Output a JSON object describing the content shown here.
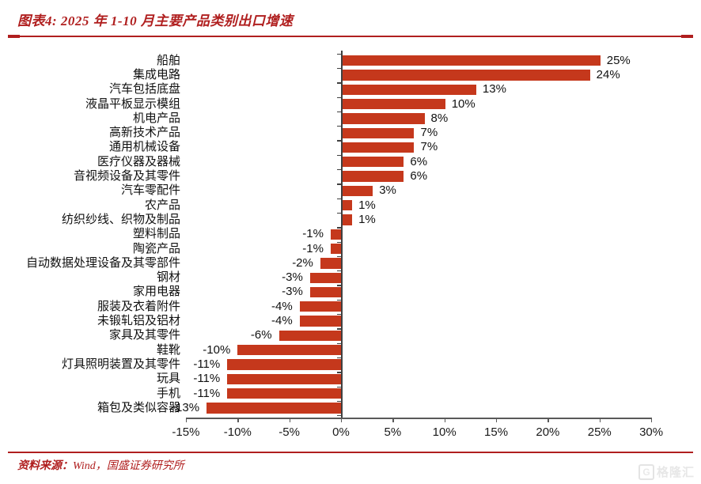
{
  "header": {
    "title": "图表4: 2025 年 1-10 月主要产品类别出口增速"
  },
  "chart_data": {
    "type": "bar",
    "orientation": "horizontal",
    "title": "2025 年 1-10 月主要产品类别出口增速",
    "categories": [
      "船舶",
      "集成电路",
      "汽车包括底盘",
      "液晶平板显示模组",
      "机电产品",
      "高新技术产品",
      "通用机械设备",
      "医疗仪器及器械",
      "音视频设备及其零件",
      "汽车零配件",
      "农产品",
      "纺织纱线、织物及制品",
      "塑料制品",
      "陶瓷产品",
      "自动数据处理设备及其零部件",
      "钢材",
      "家用电器",
      "服装及衣着附件",
      "未锻轧铝及铝材",
      "家具及其零件",
      "鞋靴",
      "灯具照明装置及其零件",
      "玩具",
      "手机",
      "箱包及类似容器"
    ],
    "values": [
      25,
      24,
      13,
      10,
      8,
      7,
      7,
      6,
      6,
      3,
      1,
      1,
      -1,
      -1,
      -2,
      -3,
      -3,
      -4,
      -4,
      -6,
      -10,
      -11,
      -11,
      -11,
      -13
    ],
    "value_labels": [
      "25%",
      "24%",
      "13%",
      "10%",
      "8%",
      "7%",
      "7%",
      "6%",
      "6%",
      "3%",
      "1%",
      "1%",
      "-1%",
      "-1%",
      "-2%",
      "-3%",
      "-3%",
      "-4%",
      "-4%",
      "-6%",
      "-10%",
      "-11%",
      "-11%",
      "-11%",
      "-13%"
    ],
    "x_tick_labels": [
      "-15%",
      "-10%",
      "-5%",
      "0%",
      "5%",
      "10%",
      "15%",
      "20%",
      "25%",
      "30%"
    ],
    "x_tick_values": [
      -15,
      -10,
      -5,
      0,
      5,
      10,
      15,
      20,
      25,
      30
    ],
    "xlim": [
      -15,
      30
    ],
    "bar_color": "#c5381c",
    "grid": false,
    "legend": false,
    "xlabel": "",
    "ylabel": ""
  },
  "footer": {
    "source_label": "资料来源：",
    "source_text": "Wind，国盛证券研究所"
  },
  "watermark": {
    "logo": "G",
    "text": "格隆汇"
  }
}
